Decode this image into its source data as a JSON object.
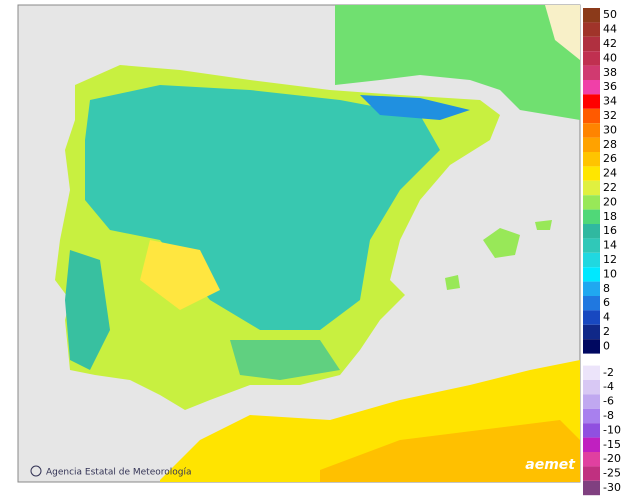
{
  "map": {
    "credit": "Agencia Estatal de Meteorología",
    "logo": "aemet"
  },
  "legend": {
    "items": [
      {
        "value": 50,
        "color": "#8b3a1a"
      },
      {
        "value": 44,
        "color": "#a0342a"
      },
      {
        "value": 42,
        "color": "#b03040"
      },
      {
        "value": 40,
        "color": "#c03050"
      },
      {
        "value": 38,
        "color": "#d03a70"
      },
      {
        "value": 36,
        "color": "#f040a8"
      },
      {
        "value": 34,
        "color": "#ff0000"
      },
      {
        "value": 32,
        "color": "#ff5a00"
      },
      {
        "value": 30,
        "color": "#ff8400"
      },
      {
        "value": 28,
        "color": "#ffa200"
      },
      {
        "value": 26,
        "color": "#ffc400"
      },
      {
        "value": 24,
        "color": "#ffe600"
      },
      {
        "value": 22,
        "color": "#e0f040"
      },
      {
        "value": 20,
        "color": "#98e858"
      },
      {
        "value": 18,
        "color": "#50d878"
      },
      {
        "value": 16,
        "color": "#30b8a0"
      },
      {
        "value": 14,
        "color": "#30c8b8"
      },
      {
        "value": 12,
        "color": "#20d8e0"
      },
      {
        "value": 10,
        "color": "#00e8ff"
      },
      {
        "value": 8,
        "color": "#20a8f0"
      },
      {
        "value": 6,
        "color": "#2078e0"
      },
      {
        "value": 4,
        "color": "#1848c0"
      },
      {
        "value": 2,
        "color": "#102888"
      },
      {
        "value": 0,
        "color": "#000860"
      },
      {
        "value": -2,
        "color": "#ece4fa"
      },
      {
        "value": -4,
        "color": "#d8c8f4"
      },
      {
        "value": -6,
        "color": "#c0a8f0"
      },
      {
        "value": -8,
        "color": "#a880ee"
      },
      {
        "value": -10,
        "color": "#9050e0"
      },
      {
        "value": -15,
        "color": "#c020c0"
      },
      {
        "value": -20,
        "color": "#e040a0"
      },
      {
        "value": -25,
        "color": "#c03080"
      },
      {
        "value": -30,
        "color": "#804080"
      }
    ]
  }
}
